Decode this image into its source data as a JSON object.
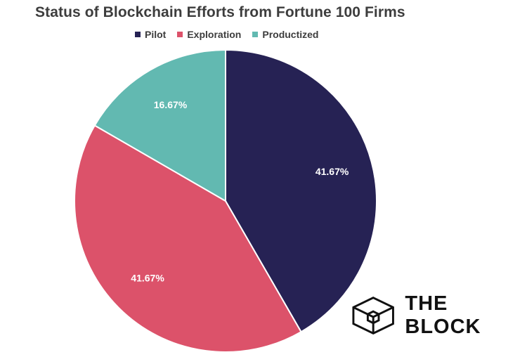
{
  "chart_data": {
    "type": "pie",
    "title": "Status of Blockchain Efforts from Fortune 100 Firms",
    "categories": [
      "Pilot",
      "Exploration",
      "Productized"
    ],
    "values": [
      41.67,
      41.67,
      16.67
    ],
    "data_labels": [
      "41.67%",
      "41.67%",
      "16.67%"
    ],
    "colors": [
      "#262254",
      "#dc526a",
      "#62b9b1"
    ],
    "legend_position": "top",
    "start_angle": "12 o'clock, clockwise"
  },
  "brand": {
    "name": "THE BLOCK",
    "logo_icon": "cube-outline-icon"
  }
}
